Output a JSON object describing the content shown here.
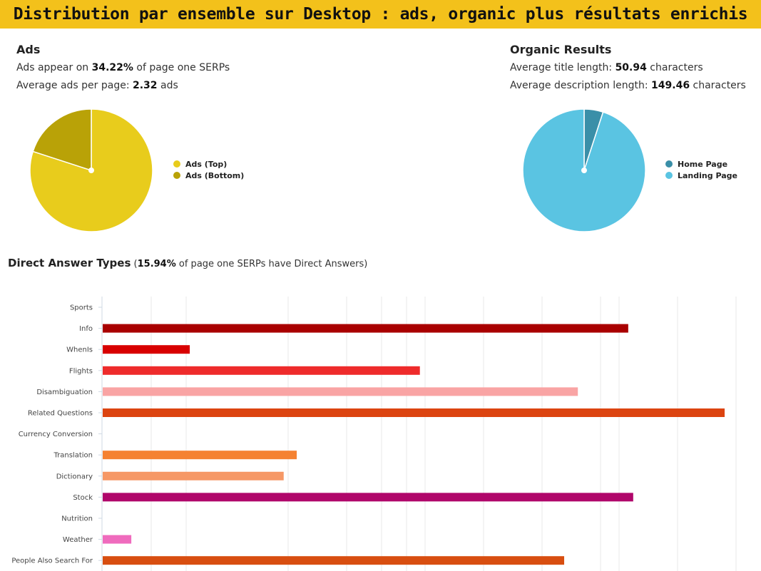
{
  "banner": {
    "title": "Distribution par ensemble sur Desktop : ads, organic plus résultats enrichis"
  },
  "ads": {
    "title": "Ads",
    "line1_prefix": "Ads appear on ",
    "line1_value": "34.22%",
    "line1_suffix": " of page one SERPs",
    "line2_prefix": "Average ads per page: ",
    "line2_value": "2.32",
    "line2_suffix": " ads"
  },
  "organic": {
    "title": "Organic Results",
    "line1_prefix": "Average title length: ",
    "line1_value": "50.94",
    "line1_suffix": " characters",
    "line2_prefix": "Average description length: ",
    "line2_value": "149.46",
    "line2_suffix": " characters"
  },
  "direct_answers": {
    "title": "Direct Answer Types",
    "note_open": " (",
    "note_value": "15.94%",
    "note_rest": " of page one SERPs have Direct Answers)"
  },
  "chart_data": [
    {
      "type": "pie",
      "labels": [
        "Ads (Top)",
        "Ads (Bottom)"
      ],
      "values": [
        80,
        20
      ],
      "colors": [
        "#e8cc1c",
        "#b9a207"
      ],
      "legend_position": "right"
    },
    {
      "type": "pie",
      "labels": [
        "Home Page",
        "Landing Page"
      ],
      "values": [
        5,
        95
      ],
      "colors": [
        "#3a8fa8",
        "#5ac4e2"
      ],
      "legend_position": "right"
    },
    {
      "type": "bar",
      "orientation": "horizontal",
      "categories": [
        "Sports",
        "Info",
        "WhenIs",
        "Flights",
        "Disambiguation",
        "Related Questions",
        "Currency Conversion",
        "Translation",
        "Dictionary",
        "Stock",
        "Nutrition",
        "Weather",
        "People Also Search For"
      ],
      "values": [
        0,
        84.5,
        14,
        51,
        76.4,
        100,
        0,
        31.2,
        29.1,
        85.3,
        0,
        4.6,
        74.2
      ],
      "colors": [
        "#a90000",
        "#a90000",
        "#d80000",
        "#ee2b2b",
        "#f9a4a4",
        "#dc4410",
        "#dc4410",
        "#f58232",
        "#f69866",
        "#b0066a",
        "#b0066a",
        "#ef6bbd",
        "#d84e10"
      ],
      "xlim": [
        0,
        100
      ],
      "grid": true
    }
  ]
}
